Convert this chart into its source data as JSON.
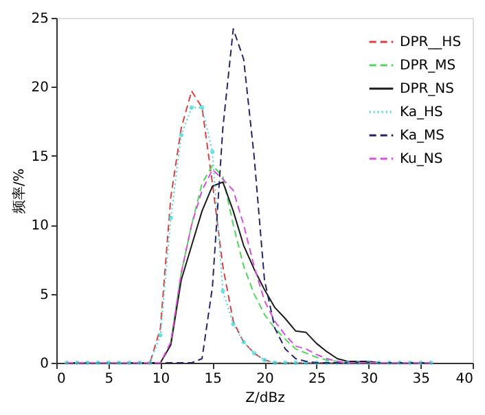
{
  "chart_data": {
    "type": "line",
    "xlabel": "Z/dBz",
    "ylabel": "频率/%",
    "x": [
      1,
      2,
      3,
      4,
      5,
      6,
      7,
      8,
      9,
      10,
      11,
      12,
      13,
      14,
      15,
      16,
      17,
      18,
      19,
      20,
      21,
      22,
      23,
      24,
      25,
      26,
      27,
      28,
      29,
      30,
      31,
      32,
      33,
      34,
      35,
      36
    ],
    "xlim": [
      0,
      40
    ],
    "xticks": [
      0,
      5,
      10,
      15,
      20,
      25,
      30,
      35,
      40
    ],
    "ylim": [
      0,
      25
    ],
    "yticks": [
      0,
      5,
      10,
      15,
      20,
      25
    ],
    "grid": false,
    "legend": "top right",
    "series": [
      {
        "name": "DPR__HS",
        "color": "#d9403f",
        "line_style": "dashed",
        "marker": "none",
        "values": [
          null,
          null,
          null,
          null,
          null,
          null,
          0,
          0,
          0,
          2.5,
          12,
          17,
          19.7,
          18.5,
          13,
          7,
          3,
          1.5,
          0.7,
          0.2,
          0,
          0,
          0,
          0,
          0,
          0,
          0,
          0,
          0,
          0,
          0,
          0,
          null,
          null,
          null,
          null
        ]
      },
      {
        "name": "DPR_MS",
        "color": "#4fd65a",
        "line_style": "dashed",
        "marker": "none",
        "values": [
          null,
          null,
          null,
          null,
          null,
          null,
          null,
          null,
          null,
          null,
          1.5,
          6.5,
          10,
          13,
          14.3,
          13.5,
          10,
          7,
          5,
          3.5,
          2.5,
          1.7,
          1,
          0.7,
          0.4,
          0.2,
          0.1,
          0,
          0,
          null,
          null,
          null,
          null,
          null,
          null,
          null
        ]
      },
      {
        "name": "DPR_NS",
        "color": "#1a1a1a",
        "line_style": "solid",
        "marker": "none",
        "values": [
          0,
          0,
          0,
          0,
          0,
          0,
          0,
          0,
          0,
          0,
          1.3,
          6,
          8.5,
          11,
          12.8,
          13.1,
          11,
          8.5,
          6.8,
          5.3,
          4,
          3.2,
          2.3,
          2.2,
          1.4,
          0.8,
          0.3,
          0.1,
          0.1,
          0.1,
          0,
          0,
          0,
          0,
          0,
          0
        ]
      },
      {
        "name": "Ka_HS",
        "color": "#3fd6d6",
        "line_style": "dotted",
        "marker": "circle",
        "values": [
          0,
          0,
          0,
          0,
          0,
          0,
          0,
          0,
          0,
          2,
          10.5,
          16.5,
          18.5,
          18.5,
          15.3,
          5.2,
          2.8,
          1.5,
          0.7,
          0.2,
          0,
          0,
          0,
          0,
          0,
          0,
          0,
          0,
          0,
          0,
          0,
          0,
          0,
          0,
          0,
          0
        ]
      },
      {
        "name": "Ka_MS",
        "color": "#23236e",
        "line_style": "dashed",
        "marker": "none",
        "values": [
          0,
          0,
          0,
          0,
          0,
          0,
          0,
          0,
          0,
          0,
          0,
          0,
          0,
          0.3,
          5.5,
          17,
          24.2,
          22,
          15,
          6,
          2.5,
          1,
          0.3,
          0.1,
          0,
          0,
          0,
          0,
          0,
          0,
          0,
          0,
          0,
          0,
          0,
          0
        ]
      },
      {
        "name": "Ku_NS",
        "color": "#d94fd9",
        "line_style": "dashed",
        "marker": "none",
        "values": [
          0,
          0,
          0,
          0,
          0,
          0,
          0,
          0,
          0,
          0,
          1.5,
          6.5,
          10,
          12.5,
          14,
          13.3,
          12.5,
          10,
          7,
          4.5,
          3,
          2,
          1.2,
          1,
          0.6,
          0.3,
          0.1,
          0,
          0,
          0,
          0,
          0,
          0,
          0,
          0,
          0
        ]
      }
    ]
  }
}
